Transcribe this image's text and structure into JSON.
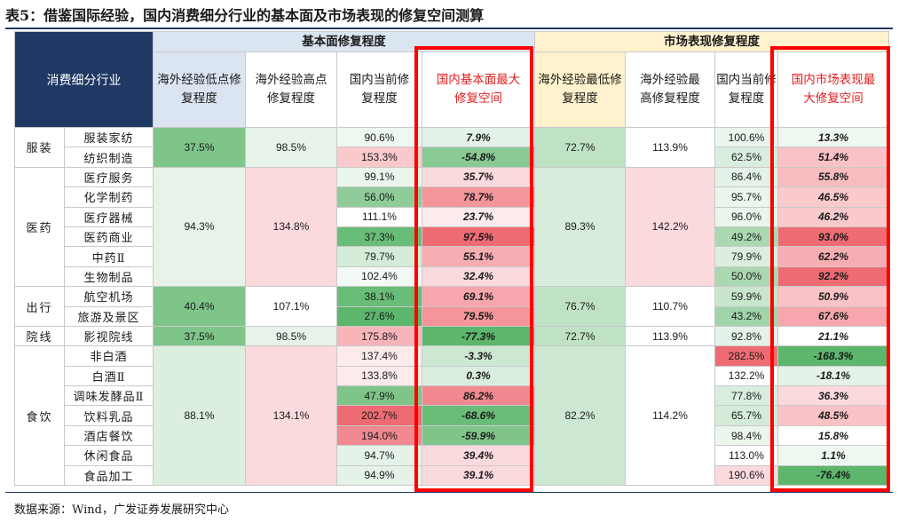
{
  "title": "表5：借鉴国际经验，国内消费细分行业的基本面及市场表现的修复空间测算",
  "source": "数据来源：Wind，广发证券发展研究中心",
  "colors": {
    "navy": "#1f3864",
    "header_blue": "#dbe5f1",
    "header_yellow": "#fff2cc",
    "red_box": "#ff0000",
    "red_text": "#e02020"
  },
  "headers": {
    "industry": "消费细分行业",
    "fundamental_group": "基本面修复程度",
    "market_group": "市场表现修复程度",
    "f_low": "海外经验低点修复程度",
    "f_high": "海外经验高点修复程度",
    "f_cur": "国内当前修复程度",
    "f_max": "国内基本面最大修复空间",
    "m_low": "海外经验最低修复程度",
    "m_high": "海外经验最高修复程度",
    "m_cur": "国内当前修复程度",
    "m_max": "国内市场表现最大修复空间"
  },
  "groups": [
    {
      "name": "服装",
      "f_low": {
        "v": "37.5%",
        "bg": "#7fc58a"
      },
      "f_high": {
        "v": "98.5%",
        "bg": "#e7f3e9"
      },
      "m_low": {
        "v": "72.7%",
        "bg": "#bfe2c5"
      },
      "m_high": {
        "v": "113.9%",
        "bg": "#ffffff"
      },
      "rows": [
        {
          "name": "服装家纺",
          "f_cur": {
            "v": "90.6%",
            "bg": "#eef7f0"
          },
          "f_max": {
            "v": "7.9%",
            "bg": "#e4f2e7"
          },
          "m_cur": {
            "v": "100.6%",
            "bg": "#eaf5ec"
          },
          "m_max": {
            "v": "13.3%",
            "bg": "#eef7f0"
          }
        },
        {
          "name": "纺织制造",
          "f_cur": {
            "v": "153.3%",
            "bg": "#f9c9cc"
          },
          "f_max": {
            "v": "-54.8%",
            "bg": "#88c994"
          },
          "m_cur": {
            "v": "62.5%",
            "bg": "#d9edde"
          },
          "m_max": {
            "v": "51.4%",
            "bg": "#f9c2c6"
          }
        }
      ]
    },
    {
      "name": "医药",
      "f_low": {
        "v": "94.3%",
        "bg": "#e7f3e9"
      },
      "f_high": {
        "v": "134.8%",
        "bg": "#fbdadd"
      },
      "m_low": {
        "v": "89.3%",
        "bg": "#d7ecdb"
      },
      "m_high": {
        "v": "142.2%",
        "bg": "#fbdadd"
      },
      "rows": [
        {
          "name": "医疗服务",
          "f_cur": {
            "v": "99.1%",
            "bg": "#eaf5ec"
          },
          "f_max": {
            "v": "35.7%",
            "bg": "#fbdadd"
          },
          "m_cur": {
            "v": "86.4%",
            "bg": "#e4f2e7"
          },
          "m_max": {
            "v": "55.8%",
            "bg": "#f8bcc0"
          }
        },
        {
          "name": "化学制药",
          "f_cur": {
            "v": "56.0%",
            "bg": "#8fcc99"
          },
          "f_max": {
            "v": "78.7%",
            "bg": "#f4959b"
          },
          "m_cur": {
            "v": "95.7%",
            "bg": "#eaf5ec"
          },
          "m_max": {
            "v": "46.5%",
            "bg": "#f9c9cc"
          }
        },
        {
          "name": "医疗器械",
          "f_cur": {
            "v": "111.1%",
            "bg": "#ffffff"
          },
          "f_max": {
            "v": "23.7%",
            "bg": "#fdeaeb"
          },
          "m_cur": {
            "v": "96.0%",
            "bg": "#eaf5ec"
          },
          "m_max": {
            "v": "46.2%",
            "bg": "#f9c9cc"
          }
        },
        {
          "name": "医药商业",
          "f_cur": {
            "v": "37.3%",
            "bg": "#6abd78"
          },
          "f_max": {
            "v": "97.5%",
            "bg": "#ef6b73"
          },
          "m_cur": {
            "v": "49.2%",
            "bg": "#a9d8b1"
          },
          "m_max": {
            "v": "93.0%",
            "bg": "#ef6b73"
          }
        },
        {
          "name": "中药Ⅱ",
          "f_cur": {
            "v": "79.7%",
            "bg": "#d3ebd7"
          },
          "f_max": {
            "v": "55.1%",
            "bg": "#f6aeb3"
          },
          "m_cur": {
            "v": "79.9%",
            "bg": "#dcefdf"
          },
          "m_max": {
            "v": "62.2%",
            "bg": "#f6aeb3"
          }
        },
        {
          "name": "生物制品",
          "f_cur": {
            "v": "102.4%",
            "bg": "#f3f9f4"
          },
          "f_max": {
            "v": "32.4%",
            "bg": "#fbdadd"
          },
          "m_cur": {
            "v": "50.0%",
            "bg": "#a9d8b1"
          },
          "m_max": {
            "v": "92.2%",
            "bg": "#ef6b73"
          }
        }
      ]
    },
    {
      "name": "出行",
      "f_low": {
        "v": "40.4%",
        "bg": "#7fc58a"
      },
      "f_high": {
        "v": "107.1%",
        "bg": "#ffffff"
      },
      "m_low": {
        "v": "76.7%",
        "bg": "#bfe2c5"
      },
      "m_high": {
        "v": "110.7%",
        "bg": "#ffffff"
      },
      "rows": [
        {
          "name": "航空机场",
          "f_cur": {
            "v": "38.1%",
            "bg": "#6abd78"
          },
          "f_max": {
            "v": "69.1%",
            "bg": "#f6a6ac"
          },
          "m_cur": {
            "v": "59.9%",
            "bg": "#c7e6cc"
          },
          "m_max": {
            "v": "50.9%",
            "bg": "#f9c2c6"
          }
        },
        {
          "name": "旅游及景区",
          "f_cur": {
            "v": "27.6%",
            "bg": "#5cb66b"
          },
          "f_max": {
            "v": "79.5%",
            "bg": "#f4959b"
          },
          "m_cur": {
            "v": "43.2%",
            "bg": "#a0d4a9"
          },
          "m_max": {
            "v": "67.6%",
            "bg": "#f6a6ac"
          }
        }
      ]
    },
    {
      "name": "院线",
      "f_low": {
        "v": "37.5%",
        "bg": "#7fc58a"
      },
      "f_high": {
        "v": "98.5%",
        "bg": "#e7f3e9"
      },
      "m_low": {
        "v": "72.7%",
        "bg": "#bfe2c5"
      },
      "m_high": {
        "v": "113.9%",
        "bg": "#ffffff"
      },
      "rows": [
        {
          "name": "影视院线",
          "f_cur": {
            "v": "175.8%",
            "bg": "#f7b5ba"
          },
          "f_max": {
            "v": "-77.3%",
            "bg": "#5cb66b"
          },
          "m_cur": {
            "v": "92.8%",
            "bg": "#e4f2e7"
          },
          "m_max": {
            "v": "21.1%",
            "bg": "#ffffff"
          }
        }
      ]
    },
    {
      "name": "食饮",
      "f_low": {
        "v": "88.1%",
        "bg": "#dcefdf"
      },
      "f_high": {
        "v": "134.1%",
        "bg": "#fbdadd"
      },
      "m_low": {
        "v": "82.2%",
        "bg": "#cde8d2"
      },
      "m_high": {
        "v": "114.2%",
        "bg": "#ffffff"
      },
      "rows": [
        {
          "name": "非白酒",
          "f_cur": {
            "v": "137.4%",
            "bg": "#fdeaeb"
          },
          "f_max": {
            "v": "-3.3%",
            "bg": "#cde8d2"
          },
          "m_cur": {
            "v": "282.5%",
            "bg": "#ef6b73"
          },
          "m_max": {
            "v": "-168.3%",
            "bg": "#5cb66b"
          }
        },
        {
          "name": "白酒Ⅱ",
          "f_cur": {
            "v": "133.8%",
            "bg": "#fdeaeb"
          },
          "f_max": {
            "v": "0.3%",
            "bg": "#d9edde"
          },
          "m_cur": {
            "v": "132.2%",
            "bg": "#ffffff"
          },
          "m_max": {
            "v": "-18.1%",
            "bg": "#e4f2e7"
          }
        },
        {
          "name": "调味发酵品Ⅱ",
          "f_cur": {
            "v": "47.9%",
            "bg": "#7fc58a"
          },
          "f_max": {
            "v": "86.2%",
            "bg": "#f28990"
          },
          "m_cur": {
            "v": "77.8%",
            "bg": "#d9edde"
          },
          "m_max": {
            "v": "36.3%",
            "bg": "#fbdadd"
          }
        },
        {
          "name": "饮料乳品",
          "f_cur": {
            "v": "202.7%",
            "bg": "#ef6b73"
          },
          "f_max": {
            "v": "-68.6%",
            "bg": "#6abd78"
          },
          "m_cur": {
            "v": "65.7%",
            "bg": "#d3ebd7"
          },
          "m_max": {
            "v": "48.5%",
            "bg": "#f9c2c6"
          }
        },
        {
          "name": "酒店餐饮",
          "f_cur": {
            "v": "194.0%",
            "bg": "#f28990"
          },
          "f_max": {
            "v": "-59.9%",
            "bg": "#7fc58a"
          },
          "m_cur": {
            "v": "98.4%",
            "bg": "#eaf5ec"
          },
          "m_max": {
            "v": "15.8%",
            "bg": "#ffffff"
          }
        },
        {
          "name": "休闲食品",
          "f_cur": {
            "v": "94.7%",
            "bg": "#e4f2e7"
          },
          "f_max": {
            "v": "39.4%",
            "bg": "#fbdadd"
          },
          "m_cur": {
            "v": "113.0%",
            "bg": "#ffffff"
          },
          "m_max": {
            "v": "1.1%",
            "bg": "#eef7f0"
          }
        },
        {
          "name": "食品加工",
          "f_cur": {
            "v": "94.9%",
            "bg": "#e4f2e7"
          },
          "f_max": {
            "v": "39.1%",
            "bg": "#fbdadd"
          },
          "m_cur": {
            "v": "190.6%",
            "bg": "#fbdadd"
          },
          "m_max": {
            "v": "-76.4%",
            "bg": "#5cb66b"
          }
        }
      ]
    }
  ]
}
